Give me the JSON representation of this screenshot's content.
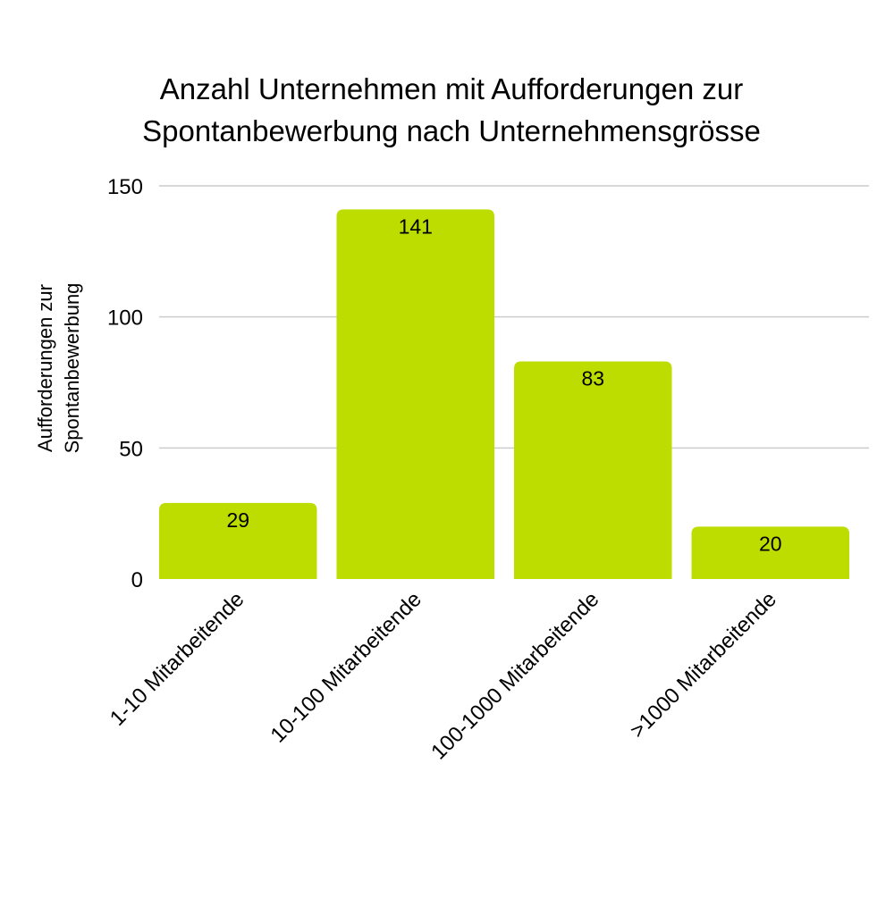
{
  "chart_data": {
    "type": "bar",
    "title_lines": [
      "Anzahl Unternehmen mit Aufforderungen zur",
      "Spontanbewerbung nach Unternehmensgrösse"
    ],
    "ylabel_lines": [
      "Aufforderungen zur",
      "Spontanbewerbung"
    ],
    "xlabel": "",
    "categories": [
      "1-10 Mitarbeitende",
      "10-100 Mitarbeitende",
      "100-1000 Mitarbeitende",
      ">1000 Mitarbeitende"
    ],
    "values": [
      29,
      141,
      83,
      20
    ],
    "ylim": [
      0,
      150
    ],
    "yticks": [
      0,
      50,
      100,
      150
    ],
    "grid": true,
    "legend": "none",
    "colors": {
      "bar": "#bddc00",
      "grid": "#cccccc",
      "text": "#000000"
    }
  }
}
